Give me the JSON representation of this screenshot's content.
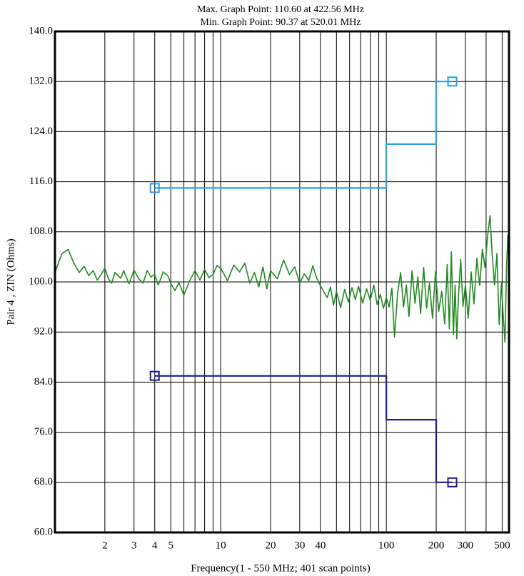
{
  "chart_data": {
    "type": "line",
    "title": "Max. Graph Point: 110.60 at 422.56 MHz",
    "subtitle": "Min. Graph Point: 90.37 at 520.01 MHz",
    "x_label": "Frequency(1 - 550 MHz; 401 scan points)",
    "y_label": "Pair 4 , ZIN (Ohms)",
    "xscale": "log",
    "xlim": [
      1,
      550
    ],
    "ylim": [
      60,
      140
    ],
    "xticks": [
      2,
      3,
      4,
      5,
      10,
      20,
      30,
      40,
      100,
      200,
      300,
      500
    ],
    "xminor_ticks": [
      6,
      7,
      8,
      9,
      50,
      60,
      70,
      80,
      90,
      400
    ],
    "yticks": [
      {
        "value": 60,
        "label": "60.0"
      },
      {
        "value": 68,
        "label": "68.0"
      },
      {
        "value": 76,
        "label": "76.0"
      },
      {
        "value": 84,
        "label": "84.0"
      },
      {
        "value": 92,
        "label": "92.0"
      },
      {
        "value": 100,
        "label": "100.0"
      },
      {
        "value": 108,
        "label": "108.0"
      },
      {
        "value": 116,
        "label": "116.0"
      },
      {
        "value": 124,
        "label": "124.0"
      },
      {
        "value": 132,
        "label": "132.0"
      },
      {
        "value": 140,
        "label": "140.0"
      }
    ],
    "grid": true,
    "series": [
      {
        "color": "#1f8a1f",
        "marker_ends": false,
        "x": [
          1,
          1.1,
          1.2,
          1.3,
          1.4,
          1.5,
          1.6,
          1.7,
          1.8,
          1.9,
          2,
          2.1,
          2.2,
          2.3,
          2.5,
          2.6,
          2.8,
          3,
          3.2,
          3.4,
          3.6,
          3.8,
          4,
          4.2,
          4.5,
          4.8,
          5,
          5.3,
          5.6,
          6,
          6.5,
          7,
          7.5,
          8,
          8.5,
          9,
          9.5,
          10,
          11,
          12,
          13,
          14,
          15,
          16,
          17,
          18,
          19,
          20,
          22,
          24,
          26,
          28,
          30,
          32,
          34,
          36,
          38,
          40,
          42,
          44,
          46,
          48,
          50,
          53,
          56,
          59,
          62,
          65,
          68,
          72,
          76,
          80,
          84,
          88,
          92,
          96,
          100,
          104,
          108,
          112,
          117,
          122,
          127,
          132,
          137,
          143,
          149,
          155,
          161,
          168,
          175,
          182,
          190,
          198,
          207,
          216,
          225,
          233,
          240,
          247,
          254,
          260,
          266,
          273,
          281,
          290,
          300,
          312,
          325,
          338,
          352,
          366,
          380,
          394,
          408,
          422.56,
          436,
          450,
          465,
          480,
          495,
          505,
          520.01,
          532,
          541,
          550
        ],
        "values": [
          101.5,
          104.5,
          105.2,
          103,
          101.5,
          102.5,
          101,
          101.8,
          100.3,
          101.2,
          102.2,
          100.5,
          99.8,
          101.5,
          100.6,
          101.8,
          99.7,
          101.9,
          100.5,
          99.8,
          101.8,
          100.8,
          101.2,
          99.5,
          101.6,
          101,
          99.8,
          98.6,
          99.9,
          97.9,
          100.2,
          101.8,
          100.3,
          102,
          100.7,
          101.2,
          102.6,
          102.2,
          100.2,
          102.7,
          101.6,
          103,
          99.8,
          101.5,
          99.2,
          102.4,
          98.9,
          101.8,
          100.5,
          103.5,
          101.2,
          102.4,
          99.8,
          101.3,
          100.2,
          102.6,
          100.6,
          99.4,
          98.4,
          97.5,
          99.2,
          96.3,
          98.5,
          95.9,
          98.8,
          96.8,
          99.1,
          97.2,
          99.3,
          96.6,
          98.9,
          97.1,
          99.5,
          96.4,
          98,
          95.8,
          97.5,
          96,
          99,
          91.2,
          98.2,
          101.5,
          96,
          99.5,
          94.5,
          101.8,
          96.6,
          100.8,
          94.9,
          102.3,
          95.8,
          99.8,
          94.2,
          101.6,
          95.3,
          98.5,
          93.3,
          102.8,
          92.5,
          104.8,
          91.6,
          99.5,
          90.9,
          98,
          103.6,
          96.1,
          99.5,
          94.2,
          101.6,
          96.5,
          103.8,
          99.4,
          105.2,
          102.3,
          107.2,
          110.6,
          104.1,
          99.5,
          104.5,
          93.2,
          99.8,
          95.4,
          90.37,
          102.5,
          107.5,
          101
        ]
      },
      {
        "color": "#2b9fe0",
        "marker_ends": true,
        "x": [
          4,
          100,
          100,
          200,
          200,
          250
        ],
        "values": [
          115,
          115,
          122,
          122,
          132,
          132
        ]
      },
      {
        "color": "#1c1c8f",
        "marker_ends": true,
        "x": [
          4,
          100,
          100,
          200,
          200,
          250
        ],
        "values": [
          85,
          85,
          78,
          78,
          68,
          68
        ]
      }
    ]
  }
}
